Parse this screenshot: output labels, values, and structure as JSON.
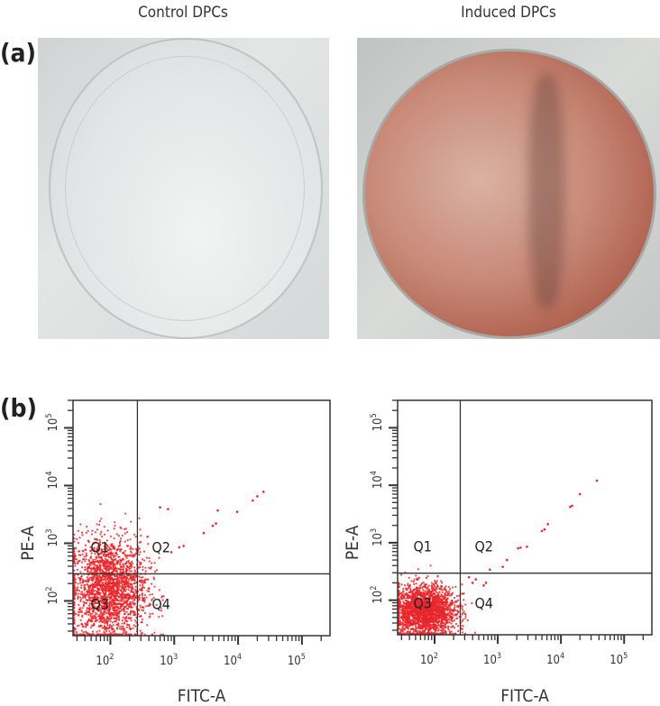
{
  "panel_a": {
    "label": "(a)",
    "images": [
      {
        "caption": "Control DPCs"
      },
      {
        "caption": "Induced DPCs"
      }
    ]
  },
  "panel_b": {
    "label": "(b)"
  },
  "chart_data": [
    {
      "type": "scatter",
      "xlabel": "FITC-A",
      "ylabel": "PE-A",
      "x_scale": "log",
      "y_scale": "log",
      "xlim": [
        26,
        275000
      ],
      "ylim": [
        25,
        300000
      ],
      "x_ticks": [
        "10^2",
        "10^3",
        "10^4",
        "10^5"
      ],
      "y_ticks": [
        "10^2",
        "10^3",
        "10^4",
        "10^5"
      ],
      "gate": {
        "x": 265,
        "y": 295
      },
      "quadrants": [
        "Q1",
        "Q2",
        "Q3",
        "Q4"
      ],
      "point_color": "#e8262b",
      "clusters": [
        {
          "center": [
            95,
            160
          ],
          "spread_log10": [
            0.3,
            0.45
          ],
          "n": 2200
        }
      ],
      "outliers": [
        [
          25000,
          7800
        ],
        [
          20000,
          6500
        ],
        [
          17000,
          5500
        ],
        [
          9700,
          3500
        ],
        [
          4800,
          3700
        ],
        [
          4500,
          2200
        ],
        [
          4000,
          2000
        ],
        [
          2900,
          1500
        ],
        [
          1400,
          900
        ],
        [
          1200,
          850
        ],
        [
          800,
          3900
        ],
        [
          600,
          4200
        ],
        [
          900,
          700
        ]
      ]
    },
    {
      "type": "scatter",
      "xlabel": "FITC-A",
      "ylabel": "PE-A",
      "x_scale": "log",
      "y_scale": "log",
      "xlim": [
        26,
        275000
      ],
      "ylim": [
        25,
        300000
      ],
      "x_ticks": [
        "10^2",
        "10^3",
        "10^4",
        "10^5"
      ],
      "y_ticks": [
        "10^2",
        "10^3",
        "10^4",
        "10^5"
      ],
      "gate": {
        "x": 255,
        "y": 295
      },
      "quadrants": [
        "Q1",
        "Q2",
        "Q3",
        "Q4"
      ],
      "point_color": "#e8262b",
      "clusters": [
        {
          "center": [
            70,
            65
          ],
          "spread_log10": [
            0.25,
            0.22
          ],
          "n": 2200
        }
      ],
      "outliers": [
        [
          37000,
          12000
        ],
        [
          20000,
          7000
        ],
        [
          15000,
          4400
        ],
        [
          14000,
          4200
        ],
        [
          6200,
          2100
        ],
        [
          5500,
          1700
        ],
        [
          5000,
          1600
        ],
        [
          2900,
          850
        ],
        [
          2300,
          820
        ],
        [
          2100,
          800
        ],
        [
          1400,
          500
        ],
        [
          1200,
          380
        ],
        [
          750,
          340
        ],
        [
          650,
          200
        ],
        [
          600,
          180
        ],
        [
          450,
          230
        ],
        [
          400,
          200
        ],
        [
          350,
          250
        ]
      ]
    }
  ]
}
